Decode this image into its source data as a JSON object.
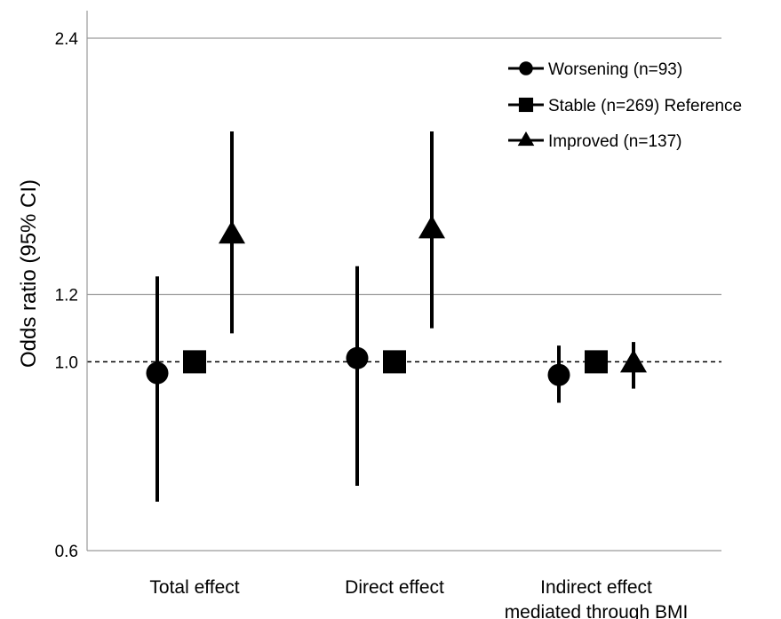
{
  "chart_data": {
    "type": "scatter",
    "title": "",
    "xlabel": "",
    "ylabel": "Odds ratio (95% CI)",
    "y_scale": "log",
    "ylim": [
      0.6,
      2.4
    ],
    "yticks": [
      0.6,
      1.0,
      1.2,
      2.4
    ],
    "ytick_labels": [
      "0.6",
      "1.0",
      "1.2",
      "2.4"
    ],
    "gridlines": [
      1.2,
      2.4
    ],
    "reference_line": 1.0,
    "categories": [
      [
        "Total effect"
      ],
      [
        "Direct effect"
      ],
      [
        "Indirect effect",
        "mediated through BMI"
      ]
    ],
    "legend_position": "top-right",
    "series": [
      {
        "name": "Worsening (n=93)",
        "marker": "circle",
        "values": [
          0.97,
          1.01,
          0.965
        ],
        "lower": [
          0.685,
          0.715,
          0.895
        ],
        "upper": [
          1.26,
          1.295,
          1.045
        ]
      },
      {
        "name": "Stable (n=269) Reference",
        "marker": "square",
        "values": [
          1.0,
          1.0,
          1.0
        ],
        "lower": [
          null,
          null,
          null
        ],
        "upper": [
          null,
          null,
          null
        ]
      },
      {
        "name": "Improved (n=137)",
        "marker": "triangle",
        "values": [
          1.41,
          1.43,
          0.995
        ],
        "lower": [
          1.08,
          1.095,
          0.93
        ],
        "upper": [
          1.865,
          1.865,
          1.055
        ]
      }
    ]
  }
}
